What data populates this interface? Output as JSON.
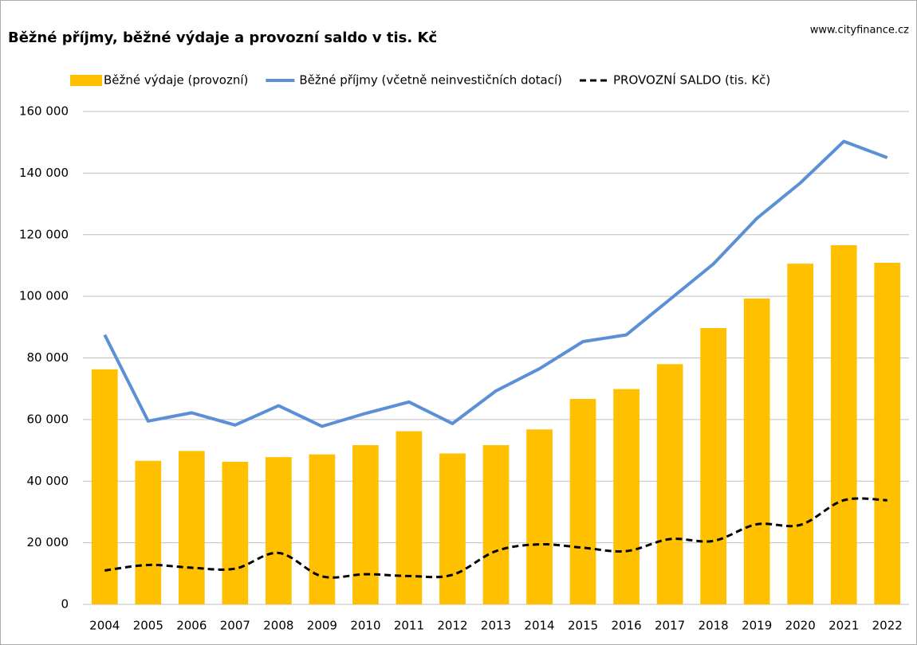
{
  "chart_data": {
    "type": "bar",
    "title": "Běžné příjmy, běžné výdaje a provozní saldo v tis. Kč",
    "source": "www.cityfinance.cz",
    "categories": [
      "2004",
      "2005",
      "2006",
      "2007",
      "2008",
      "2009",
      "2010",
      "2011",
      "2012",
      "2013",
      "2014",
      "2015",
      "2016",
      "2017",
      "2018",
      "2019",
      "2020",
      "2021",
      "2022"
    ],
    "series": [
      {
        "name": "Běžné výdaje (provozní)",
        "type": "bar",
        "color": "#ffc000",
        "values": [
          76300,
          46600,
          49800,
          46300,
          47800,
          48700,
          51700,
          56200,
          49000,
          51700,
          56800,
          66700,
          69900,
          78000,
          89700,
          99300,
          110600,
          116600,
          110900
        ]
      },
      {
        "name": "Běžné příjmy (včetně neinvestičních dotací)",
        "type": "line",
        "color": "#5b8fd6",
        "values": [
          87500,
          59500,
          62200,
          58200,
          64500,
          57800,
          62000,
          65700,
          58700,
          69300,
          76500,
          85300,
          87500,
          99000,
          110500,
          125300,
          136800,
          150300,
          145000
        ]
      },
      {
        "name": "PROVOZNÍ SALDO (tis. Kč)",
        "type": "line",
        "color": "#000000",
        "dashed": true,
        "smooth": true,
        "values": [
          11000,
          12800,
          11900,
          11600,
          16700,
          9100,
          9800,
          9200,
          9600,
          17300,
          19500,
          18400,
          17300,
          21200,
          20600,
          26000,
          25800,
          33800,
          33800
        ]
      }
    ],
    "ylim": [
      0,
      160000
    ],
    "yticks": [
      0,
      {
        "value": 20000,
        "label": "20 000"
      },
      {
        "value": 40000,
        "label": "40 000"
      },
      {
        "value": 60000,
        "label": "60 000"
      },
      {
        "value": 80000,
        "label": "80 000"
      },
      {
        "value": 100000,
        "label": "100 000"
      },
      {
        "value": 120000,
        "label": "120 000"
      },
      {
        "value": 140000,
        "label": "140 000"
      },
      {
        "value": 160000,
        "label": "160 000"
      }
    ],
    "grid": true,
    "legend": "top"
  }
}
